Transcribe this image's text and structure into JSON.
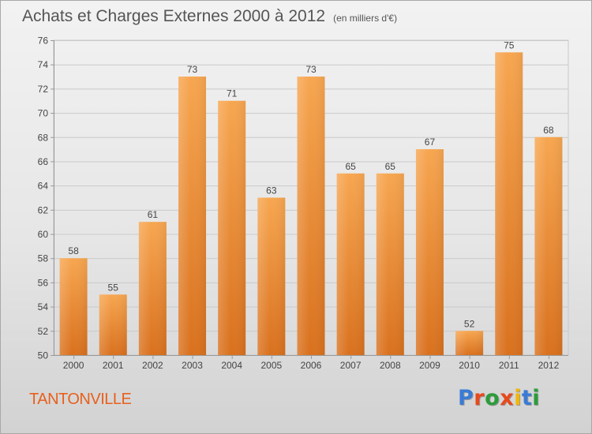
{
  "header": {
    "title": "Achats et Charges Externes 2000 à 2012",
    "subtitle": "(en milliers d'€)"
  },
  "footer": {
    "city": "TANTONVILLE",
    "logo_text": "Proxiti",
    "logo_colors": [
      "#3a7bd5",
      "#e8491d",
      "#2b9c3a",
      "#e8491d",
      "#f2b705",
      "#3a7bd5",
      "#2b9c3a"
    ]
  },
  "colors": {
    "bar_light": "#f7a650",
    "bar_dark": "#d9711e",
    "axis": "#999999",
    "text": "#444444"
  },
  "chart_data": {
    "type": "bar",
    "title": "Achats et Charges Externes 2000 à 2012",
    "subtitle": "(en milliers d'€)",
    "categories": [
      "2000",
      "2001",
      "2002",
      "2003",
      "2004",
      "2005",
      "2006",
      "2007",
      "2008",
      "2009",
      "2010",
      "2011",
      "2012"
    ],
    "values": [
      58,
      55,
      61,
      73,
      71,
      63,
      73,
      65,
      65,
      67,
      52,
      75,
      68
    ],
    "ylim": [
      50,
      76
    ],
    "yticks": [
      50,
      52,
      54,
      56,
      58,
      60,
      62,
      64,
      66,
      68,
      70,
      72,
      74,
      76
    ],
    "grid": true,
    "xlabel": "",
    "ylabel": ""
  }
}
